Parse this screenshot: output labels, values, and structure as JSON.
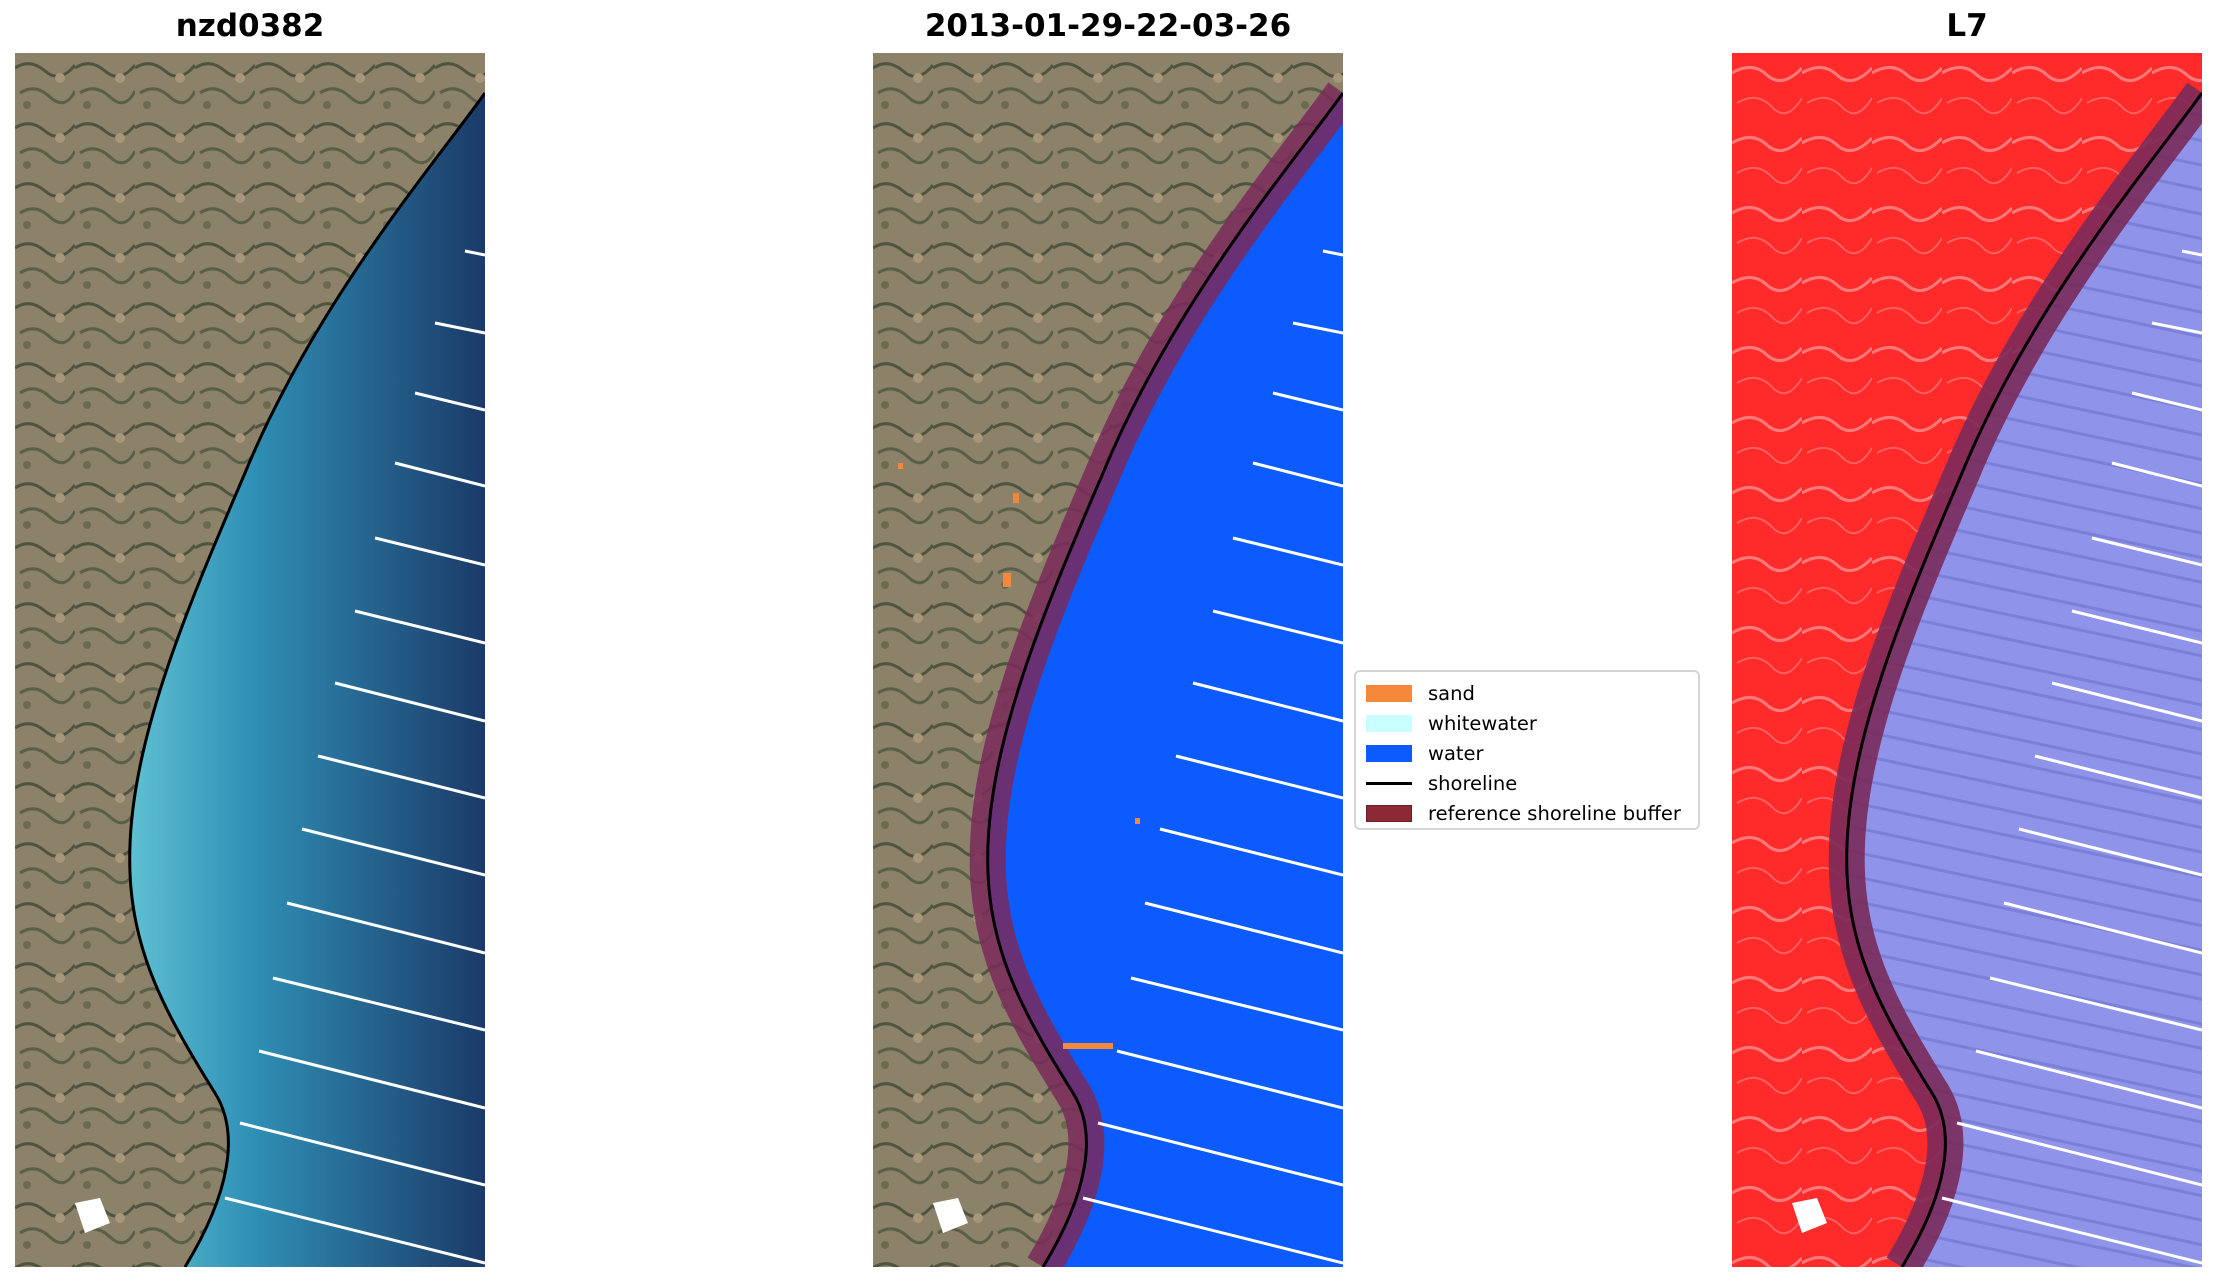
{
  "panels": {
    "left_title": "nzd0382",
    "middle_title": "2013-01-29-22-03-26",
    "right_title": "L7"
  },
  "legend": {
    "items": [
      {
        "label": "sand",
        "color": "#f5883a",
        "kind": "patch"
      },
      {
        "label": "whitewater",
        "color": "#c9ffff",
        "kind": "patch"
      },
      {
        "label": "water",
        "color": "#0b5bff",
        "kind": "patch"
      },
      {
        "label": "shoreline",
        "color": "#000000",
        "kind": "line"
      },
      {
        "label": "reference shoreline buffer",
        "color": "#8b2a35",
        "kind": "patch"
      }
    ]
  },
  "colors": {
    "land": "#8a7f6a",
    "sea_dark": "#1d3f6e",
    "sea_light": "#2f8fb5",
    "classified_water": "#0b5bff",
    "buffer": "#7a2a5a",
    "infrared_land": "#ff2a2a",
    "infrared_water": "#8f93e6"
  }
}
